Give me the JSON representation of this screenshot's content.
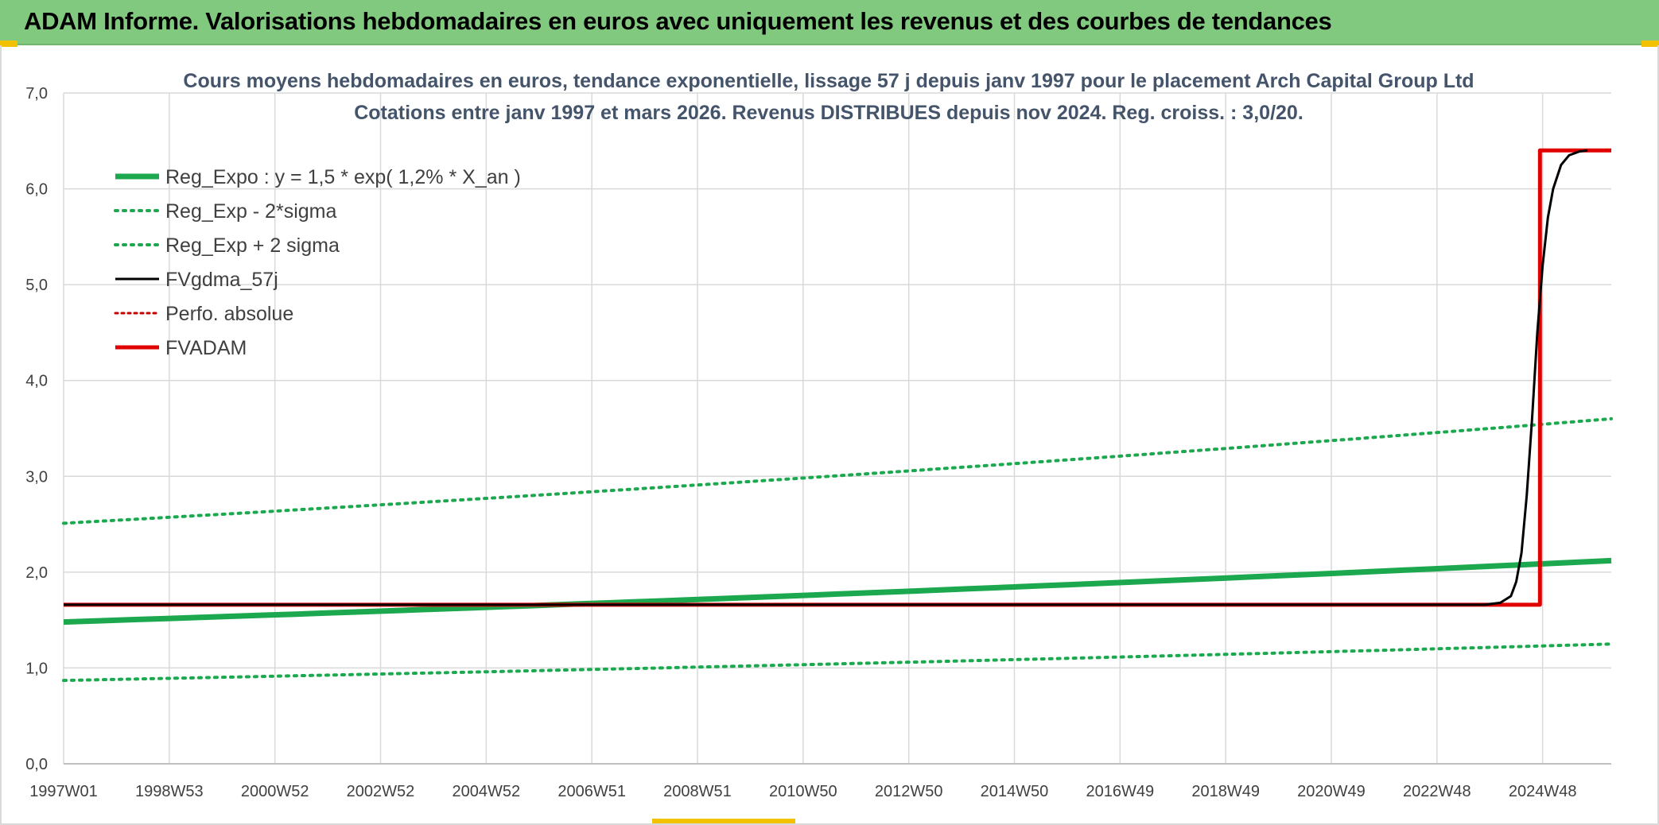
{
  "header": {
    "title": "ADAM Informe. Valorisations hebdomadaires en euros avec uniquement les revenus et des courbes de tendances"
  },
  "colors": {
    "banner": "#81c97f",
    "trend": "#1ca84e",
    "fv": "#000000",
    "adam": "#e00000",
    "perf": "#c00000",
    "grid": "#d9d9d9"
  },
  "chart_data": {
    "type": "line",
    "title_lines": [
      "Cours moyens hebdomadaires en euros, tendance exponentielle, lissage 57 j depuis janv 1997 pour le placement Arch Capital Group Ltd",
      "Cotations entre janv 1997 et mars 2026. Revenus DISTRIBUES depuis nov 2024. Reg. croiss. : 3,0/20."
    ],
    "x_tick_labels": [
      "1997W01",
      "1998W53",
      "2000W52",
      "2002W52",
      "2004W52",
      "2006W51",
      "2008W51",
      "2010W50",
      "2012W50",
      "2014W50",
      "2016W49",
      "2018W49",
      "2020W49",
      "2022W48",
      "2024W48"
    ],
    "x_tick_years": [
      1997.0,
      1999.0,
      2001.0,
      2003.0,
      2005.0,
      2007.0,
      2009.0,
      2011.0,
      2013.0,
      2015.0,
      2017.0,
      2019.0,
      2021.0,
      2023.0,
      2025.0
    ],
    "xlim": [
      1997.0,
      2026.3
    ],
    "ylim": [
      0,
      7
    ],
    "y_ticks": [
      "0,0",
      "1,0",
      "2,0",
      "3,0",
      "4,0",
      "5,0",
      "6,0",
      "7,0"
    ],
    "grid": true,
    "legend_position": "top-left",
    "series": [
      {
        "name": "Reg_Expo : y = 1,5 * exp( 1,2% *  X_an )",
        "style": "solid-thick-green",
        "x": [
          1997.0,
          2026.3
        ],
        "y": [
          1.48,
          2.12
        ],
        "curve": "exponential"
      },
      {
        "name": "Reg_Exp - 2*sigma",
        "style": "dotted-green",
        "x": [
          1997.0,
          2026.3
        ],
        "y": [
          0.87,
          1.25
        ],
        "curve": "exponential"
      },
      {
        "name": "Reg_Exp + 2 sigma",
        "style": "dotted-green",
        "x": [
          1997.0,
          2026.3
        ],
        "y": [
          2.51,
          3.6
        ],
        "curve": "exponential"
      },
      {
        "name": "FVgdma_57j",
        "style": "solid-black",
        "x": [
          1997.0,
          2023.9,
          2024.2,
          2024.4,
          2024.5,
          2024.6,
          2024.7,
          2024.8,
          2024.9,
          2025.0,
          2025.1,
          2025.2,
          2025.35,
          2025.5,
          2025.7,
          2025.85
        ],
        "y": [
          1.66,
          1.66,
          1.68,
          1.75,
          1.9,
          2.2,
          2.8,
          3.6,
          4.5,
          5.2,
          5.7,
          6.0,
          6.25,
          6.35,
          6.39,
          6.4
        ]
      },
      {
        "name": "Perfo. absolue",
        "style": "dotted-red",
        "x": [],
        "y": []
      },
      {
        "name": "FVADAM",
        "style": "solid-thick-red",
        "x": [
          1997.0,
          2024.95,
          2024.95,
          2026.3
        ],
        "y": [
          1.66,
          1.66,
          6.4,
          6.4
        ]
      }
    ]
  }
}
